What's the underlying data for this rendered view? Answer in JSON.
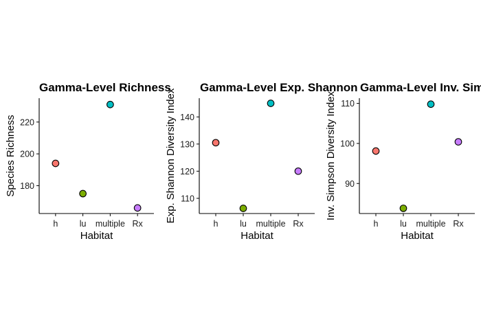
{
  "chart_data": [
    {
      "type": "scatter",
      "title": "Gamma-Level Richness",
      "xlabel": "Habitat",
      "ylabel": "Species Richness",
      "categories": [
        "h",
        "lu",
        "multiple",
        "Rx"
      ],
      "values": [
        194,
        175,
        231,
        166
      ],
      "colors": [
        "#F8766D",
        "#7CAE00",
        "#00BFC4",
        "#C77CFF"
      ],
      "ylim": [
        162.5,
        235
      ],
      "yticks": [
        180,
        200,
        220
      ],
      "grid": false,
      "legend": "none"
    },
    {
      "type": "scatter",
      "title": "Gamma-Level Exp. Shannon",
      "xlabel": "Habitat",
      "ylabel": "Exp. Shannon Diversity Index",
      "categories": [
        "h",
        "lu",
        "multiple",
        "Rx"
      ],
      "values": [
        130.5,
        106.3,
        145.0,
        120.0
      ],
      "colors": [
        "#F8766D",
        "#7CAE00",
        "#00BFC4",
        "#C77CFF"
      ],
      "ylim": [
        104.4,
        146.9
      ],
      "yticks": [
        110,
        120,
        130,
        140
      ],
      "grid": false,
      "legend": "none"
    },
    {
      "type": "scatter",
      "title": "Gamma-Level Inv. Simpson",
      "xlabel": "Habitat",
      "ylabel": "Inv. Simpson Diversity Index",
      "categories": [
        "h",
        "lu",
        "multiple",
        "Rx"
      ],
      "values": [
        98.1,
        83.8,
        109.8,
        100.4
      ],
      "colors": [
        "#F8766D",
        "#7CAE00",
        "#00BFC4",
        "#C77CFF"
      ],
      "ylim": [
        82.5,
        111.3
      ],
      "yticks": [
        90,
        100,
        110
      ],
      "grid": false,
      "legend": "none"
    }
  ]
}
